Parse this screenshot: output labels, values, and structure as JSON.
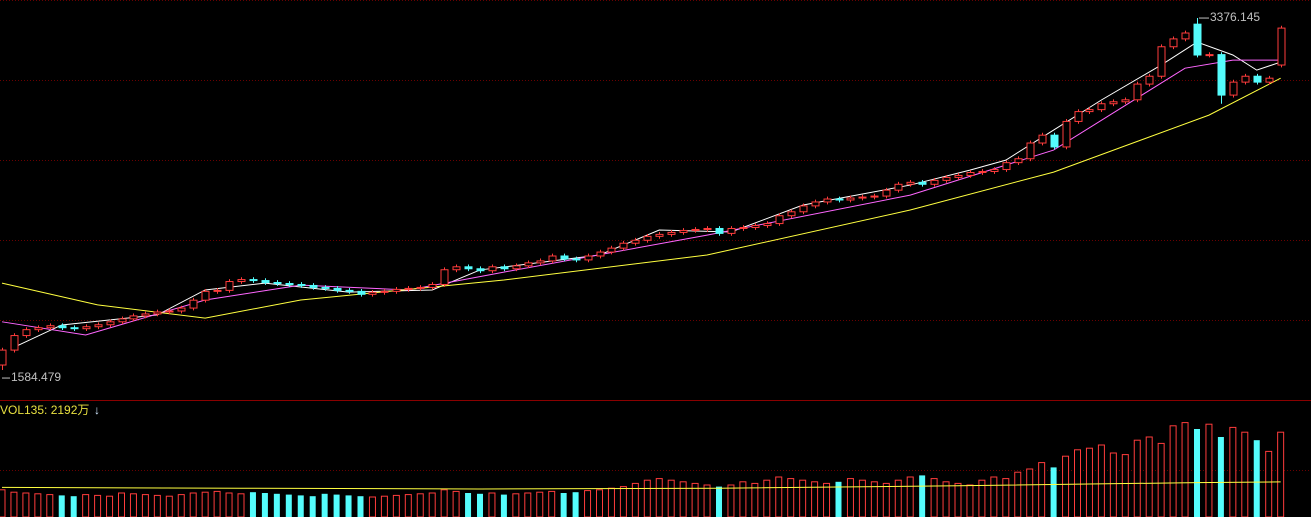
{
  "chart_data": {
    "type": "candlestick",
    "up_color": "#ff3c3c",
    "down_color": "#54fcfc",
    "ylim": [
      1432,
      3468
    ],
    "open": [
      1610,
      1686,
      1760,
      1790,
      1800,
      1810,
      1800,
      1795,
      1805,
      1815,
      1830,
      1845,
      1860,
      1870,
      1880,
      1885,
      1900,
      1940,
      1985,
      1990,
      2035,
      2045,
      2040,
      2030,
      2025,
      2020,
      2015,
      2005,
      2000,
      1990,
      1985,
      1970,
      1980,
      1985,
      1995,
      2000,
      2005,
      2020,
      2095,
      2110,
      2100,
      2090,
      2110,
      2100,
      2115,
      2130,
      2140,
      2165,
      2150,
      2145,
      2165,
      2185,
      2205,
      2230,
      2245,
      2265,
      2275,
      2285,
      2295,
      2300,
      2305,
      2280,
      2305,
      2310,
      2320,
      2330,
      2370,
      2390,
      2420,
      2440,
      2455,
      2450,
      2460,
      2465,
      2470,
      2500,
      2530,
      2540,
      2530,
      2550,
      2565,
      2575,
      2590,
      2595,
      2605,
      2640,
      2660,
      2740,
      2780,
      2720,
      2850,
      2900,
      2910,
      2940,
      2950,
      2960,
      3040,
      3080,
      3230,
      3270,
      3345,
      3188,
      3190,
      2984,
      3050,
      3080,
      3050,
      3137
    ],
    "high": [
      1698,
      1772,
      1802,
      1812,
      1822,
      1822,
      1812,
      1817,
      1827,
      1842,
      1857,
      1872,
      1882,
      1892,
      1897,
      1912,
      1952,
      1997,
      2002,
      2047,
      2057,
      2057,
      2052,
      2042,
      2037,
      2032,
      2027,
      2017,
      2012,
      2002,
      1997,
      1992,
      1997,
      2007,
      2012,
      2017,
      2032,
      2107,
      2122,
      2122,
      2112,
      2122,
      2122,
      2127,
      2142,
      2152,
      2177,
      2177,
      2162,
      2177,
      2197,
      2217,
      2242,
      2257,
      2277,
      2287,
      2297,
      2307,
      2312,
      2317,
      2317,
      2317,
      2322,
      2332,
      2342,
      2382,
      2402,
      2432,
      2452,
      2467,
      2467,
      2472,
      2477,
      2482,
      2512,
      2542,
      2552,
      2552,
      2562,
      2577,
      2587,
      2602,
      2607,
      2617,
      2652,
      2672,
      2752,
      2792,
      2792,
      2862,
      2912,
      2922,
      2952,
      2962,
      2972,
      3052,
      3092,
      3242,
      3282,
      3312,
      3376.145,
      3202,
      3202,
      3062,
      3092,
      3092,
      3082,
      3337
    ],
    "low": [
      1584.479,
      1674,
      1748,
      1778,
      1788,
      1788,
      1783,
      1783,
      1793,
      1803,
      1818,
      1833,
      1848,
      1858,
      1868,
      1873,
      1888,
      1928,
      1973,
      1978,
      2023,
      2028,
      2018,
      2013,
      2008,
      2003,
      1993,
      1988,
      1978,
      1973,
      1958,
      1958,
      1968,
      1973,
      1983,
      1988,
      1993,
      2008,
      2083,
      2088,
      2078,
      2078,
      2088,
      2088,
      2103,
      2118,
      2128,
      2138,
      2133,
      2133,
      2153,
      2173,
      2193,
      2218,
      2233,
      2253,
      2263,
      2273,
      2283,
      2288,
      2268,
      2268,
      2293,
      2298,
      2308,
      2318,
      2358,
      2378,
      2408,
      2428,
      2438,
      2438,
      2448,
      2453,
      2458,
      2488,
      2518,
      2518,
      2518,
      2538,
      2553,
      2563,
      2578,
      2583,
      2593,
      2628,
      2648,
      2728,
      2708,
      2708,
      2838,
      2888,
      2898,
      2928,
      2938,
      2948,
      3028,
      3068,
      3218,
      3258,
      3176,
      3176,
      2940,
      2972,
      3038,
      3038,
      3038,
      3125
    ],
    "close": [
      1686,
      1760,
      1790,
      1800,
      1810,
      1800,
      1795,
      1805,
      1815,
      1830,
      1845,
      1860,
      1870,
      1880,
      1885,
      1900,
      1940,
      1985,
      1990,
      2035,
      2045,
      2040,
      2030,
      2025,
      2020,
      2015,
      2005,
      2000,
      1990,
      1985,
      1970,
      1980,
      1985,
      1995,
      2000,
      2005,
      2020,
      2095,
      2110,
      2100,
      2090,
      2110,
      2100,
      2115,
      2130,
      2140,
      2165,
      2150,
      2145,
      2165,
      2185,
      2205,
      2230,
      2245,
      2265,
      2275,
      2285,
      2295,
      2300,
      2305,
      2280,
      2305,
      2310,
      2320,
      2330,
      2370,
      2390,
      2420,
      2440,
      2455,
      2450,
      2460,
      2465,
      2470,
      2500,
      2530,
      2540,
      2530,
      2550,
      2565,
      2575,
      2590,
      2595,
      2605,
      2640,
      2660,
      2740,
      2780,
      2720,
      2850,
      2900,
      2910,
      2940,
      2950,
      2960,
      3040,
      3080,
      3230,
      3270,
      3300,
      3188,
      3190,
      2984,
      3050,
      3080,
      3050,
      3070,
      3325
    ],
    "ma_lines": [
      {
        "color": "#ffffff",
        "x": [
          1,
          5,
          13,
          17,
          22,
          29,
          36,
          40,
          50,
          55,
          61,
          67,
          76,
          81,
          84,
          88,
          92,
          97,
          100,
          103,
          105,
          107
        ],
        "values": [
          1700,
          1814,
          1865,
          1992,
          2027,
          1981,
          1992,
          2094,
          2170,
          2297,
          2287,
          2424,
          2526,
          2602,
          2653,
          2806,
          2959,
          3137,
          3254,
          3188,
          3111,
          3152
        ]
      },
      {
        "color": "#ff66ff",
        "x": [
          0,
          7,
          17,
          25,
          34,
          42,
          59,
          76,
          88,
          99,
          103,
          107
        ],
        "values": [
          1830,
          1763,
          1941,
          2017,
          1992,
          2083,
          2271,
          2475,
          2704,
          3121,
          3162,
          3162
        ]
      },
      {
        "color": "#ffff40",
        "x": [
          0,
          8,
          17,
          25,
          42,
          59,
          76,
          88,
          101,
          107
        ],
        "values": [
          2027,
          1916,
          1849,
          1941,
          2043,
          2170,
          2399,
          2592,
          2882,
          3070
        ]
      }
    ],
    "volume": {
      "label": "VOL135: 2192万",
      "arrow": "↓",
      "ylim": [
        0,
        7000
      ],
      "values": [
        1700,
        1550,
        1500,
        1450,
        1400,
        1350,
        1300,
        1400,
        1350,
        1300,
        1500,
        1450,
        1400,
        1350,
        1300,
        1400,
        1500,
        1550,
        1600,
        1500,
        1450,
        1550,
        1500,
        1450,
        1400,
        1350,
        1300,
        1450,
        1400,
        1350,
        1300,
        1250,
        1300,
        1350,
        1400,
        1450,
        1500,
        1700,
        1600,
        1500,
        1450,
        1500,
        1400,
        1450,
        1500,
        1550,
        1600,
        1500,
        1550,
        1650,
        1700,
        1800,
        1900,
        2100,
        2300,
        2400,
        2300,
        2200,
        2100,
        2000,
        1900,
        2000,
        2200,
        2100,
        2300,
        2500,
        2400,
        2300,
        2200,
        2100,
        2200,
        2400,
        2300,
        2200,
        2100,
        2300,
        2500,
        2600,
        2400,
        2200,
        2100,
        2000,
        2300,
        2500,
        2400,
        2800,
        3000,
        3400,
        3100,
        3800,
        4200,
        4300,
        4500,
        4000,
        3900,
        4800,
        5000,
        4600,
        5700,
        5900,
        5500,
        5800,
        5000,
        5600,
        5300,
        4800,
        4100,
        5300
      ],
      "ma": {
        "color": "#ffff40",
        "x": [
          0,
          20,
          40,
          60,
          80,
          100,
          107
        ],
        "values": [
          1850,
          1800,
          1750,
          1800,
          1950,
          2150,
          2192
        ]
      }
    }
  }
}
